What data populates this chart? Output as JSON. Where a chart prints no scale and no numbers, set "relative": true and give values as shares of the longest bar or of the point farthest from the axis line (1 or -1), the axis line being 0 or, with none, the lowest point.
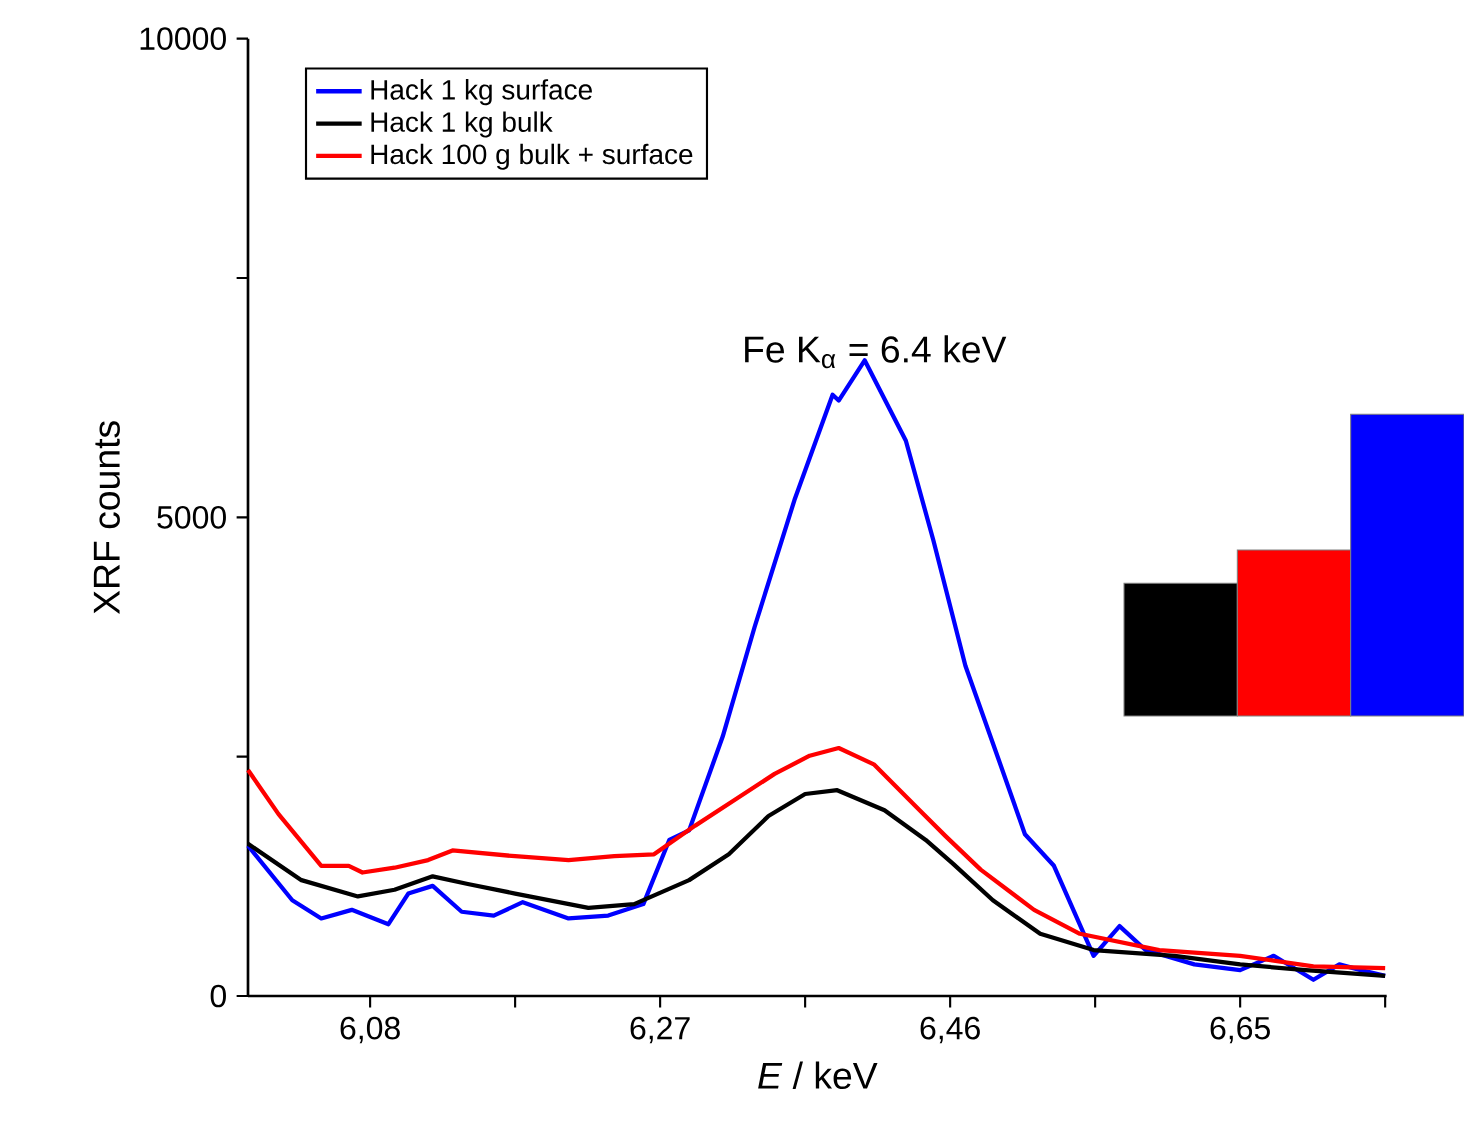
{
  "chart_data": [
    {
      "type": "line",
      "xlabel": "*E* / keV",
      "ylabel": "XRF counts",
      "xlim": [
        6.0,
        6.746
      ],
      "ylim": [
        0,
        10000
      ],
      "xticks": [
        {
          "value": 6.08,
          "label": "6,08"
        },
        {
          "value": 6.175,
          "label": null
        },
        {
          "value": 6.27,
          "label": "6,27"
        },
        {
          "value": 6.365,
          "label": null
        },
        {
          "value": 6.46,
          "label": "6,46"
        },
        {
          "value": 6.555,
          "label": null
        },
        {
          "value": 6.65,
          "label": "6,65"
        },
        {
          "value": 6.745,
          "label": null
        }
      ],
      "yticks": [
        0,
        {
          "value": 2500,
          "label": null
        },
        5000,
        {
          "value": 7500,
          "label": null
        },
        10000
      ],
      "legend": "top left",
      "annotations": [
        "Fe K$_{α}$ = 6.4 keV"
      ],
      "series": [
        {
          "name": "Hack 1 kg surface",
          "color": "#0000ff",
          "x": [
            6.0,
            6.029,
            6.048,
            6.068,
            6.092,
            6.105,
            6.121,
            6.14,
            6.161,
            6.18,
            6.21,
            6.236,
            6.259,
            6.276,
            6.289,
            6.311,
            6.332,
            6.358,
            6.383,
            6.387,
            6.404,
            6.431,
            6.449,
            6.47,
            6.492,
            6.509,
            6.528,
            6.554,
            6.571,
            6.588,
            6.62,
            6.65,
            6.672,
            6.698,
            6.715,
            6.729,
            6.745
          ],
          "values": [
            1570,
            1000,
            810,
            900,
            750,
            1070,
            1150,
            880,
            840,
            980,
            810,
            840,
            960,
            1630,
            1730,
            2710,
            3860,
            5180,
            6280,
            6220,
            6640,
            5800,
            4760,
            3450,
            2460,
            1690,
            1360,
            420,
            730,
            480,
            330,
            270,
            420,
            170,
            330,
            270,
            210
          ]
        },
        {
          "name": "Hack 1 kg bulk",
          "color": "#000000",
          "x": [
            6.0,
            6.035,
            6.072,
            6.096,
            6.121,
            6.144,
            6.175,
            6.223,
            6.253,
            6.289,
            6.315,
            6.341,
            6.365,
            6.386,
            6.417,
            6.444,
            6.462,
            6.488,
            6.519,
            6.554,
            6.607,
            6.65,
            6.693,
            6.745
          ],
          "values": [
            1590,
            1210,
            1040,
            1110,
            1250,
            1170,
            1070,
            920,
            960,
            1210,
            1480,
            1880,
            2110,
            2150,
            1940,
            1630,
            1380,
            1000,
            650,
            480,
            420,
            330,
            270,
            210
          ]
        },
        {
          "name": "Hack 100 g bulk + surface",
          "color": "#ff0000",
          "x": [
            6.0,
            6.02,
            6.048,
            6.066,
            6.075,
            6.096,
            6.118,
            6.134,
            6.175,
            6.21,
            6.24,
            6.266,
            6.293,
            6.319,
            6.345,
            6.368,
            6.387,
            6.41,
            6.44,
            6.457,
            6.48,
            6.515,
            6.545,
            6.597,
            6.65,
            6.698,
            6.745
          ],
          "values": [
            2360,
            1900,
            1360,
            1360,
            1290,
            1340,
            1420,
            1520,
            1460,
            1420,
            1460,
            1480,
            1780,
            2050,
            2320,
            2510,
            2590,
            2420,
            1940,
            1670,
            1320,
            900,
            650,
            480,
            420,
            310,
            290
          ]
        }
      ]
    },
    {
      "type": "bar",
      "relative": true,
      "categories": [
        null,
        null,
        null
      ],
      "values": [
        0.44,
        0.55,
        1.0
      ],
      "colors": [
        "#000000",
        "#ff0000",
        "#0000ff"
      ]
    }
  ]
}
